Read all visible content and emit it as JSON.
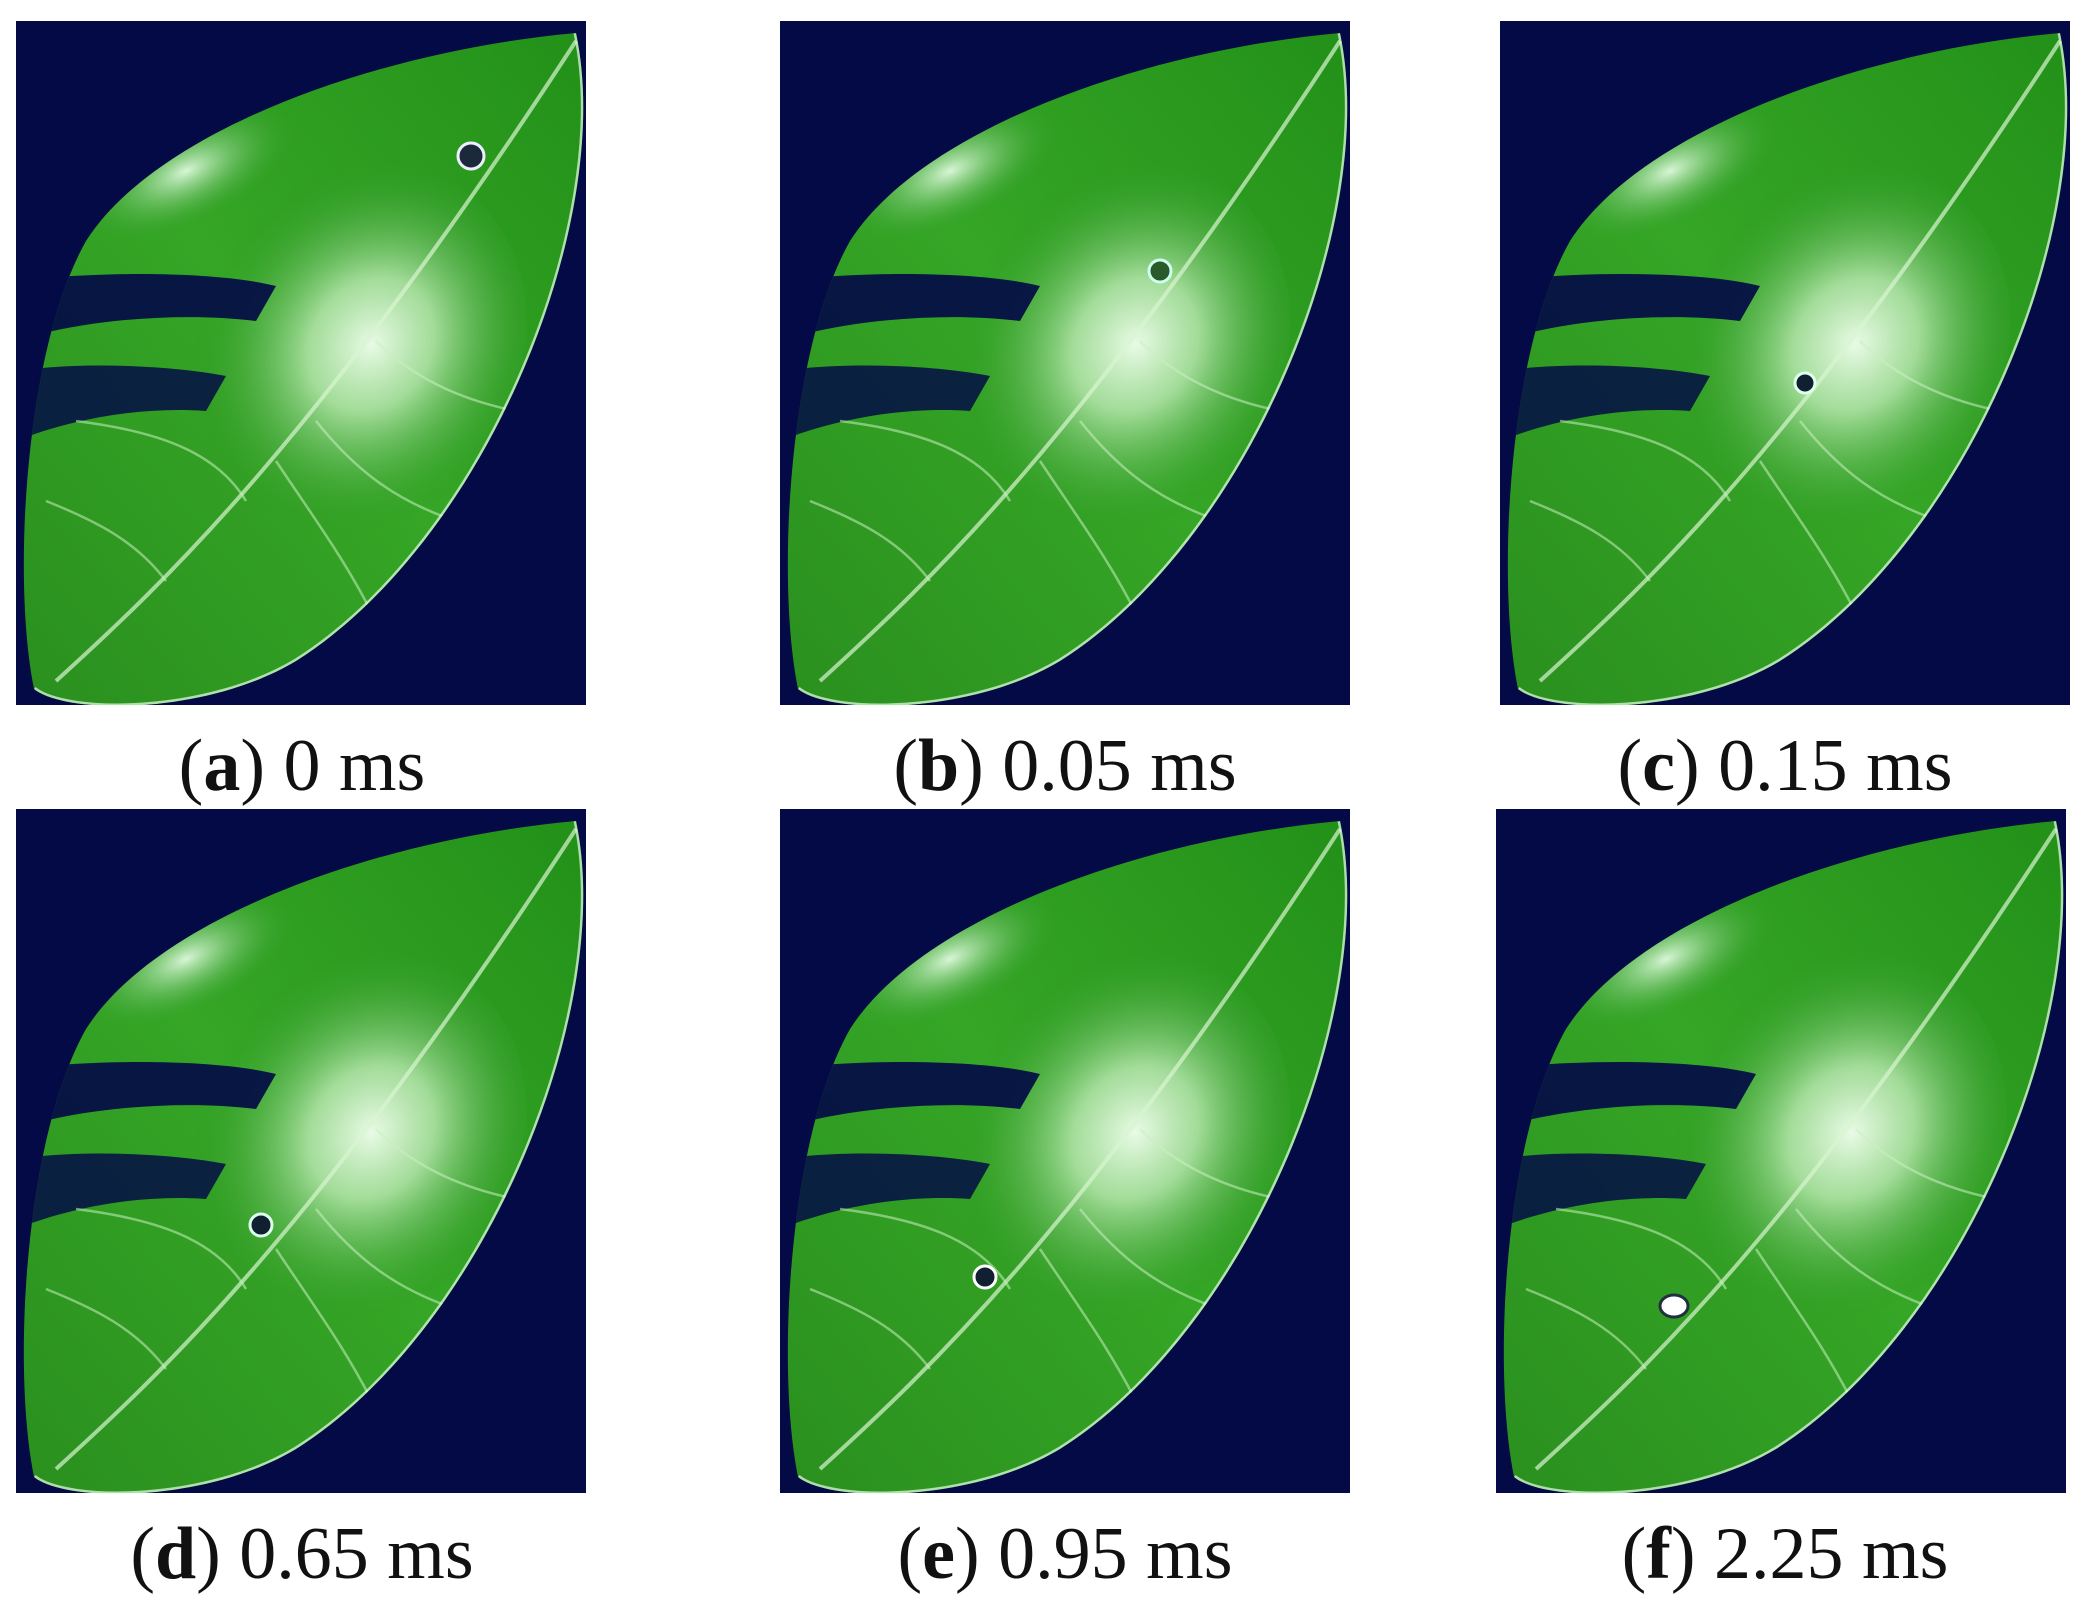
{
  "figure": {
    "panels": [
      {
        "caption": [
          "(",
          "a",
          ") 0 ms"
        ]
      },
      {
        "caption": [
          "(",
          "b",
          ") 0.05 ms"
        ]
      },
      {
        "caption": [
          "(",
          "c",
          ") 0.15 ms"
        ]
      },
      {
        "caption": [
          "(",
          "d",
          ") 0.65 ms"
        ]
      },
      {
        "caption": [
          "(",
          "e",
          ") 0.95 ms"
        ]
      },
      {
        "caption": [
          "(",
          "f",
          ") 2.25 ms"
        ]
      }
    ]
  }
}
